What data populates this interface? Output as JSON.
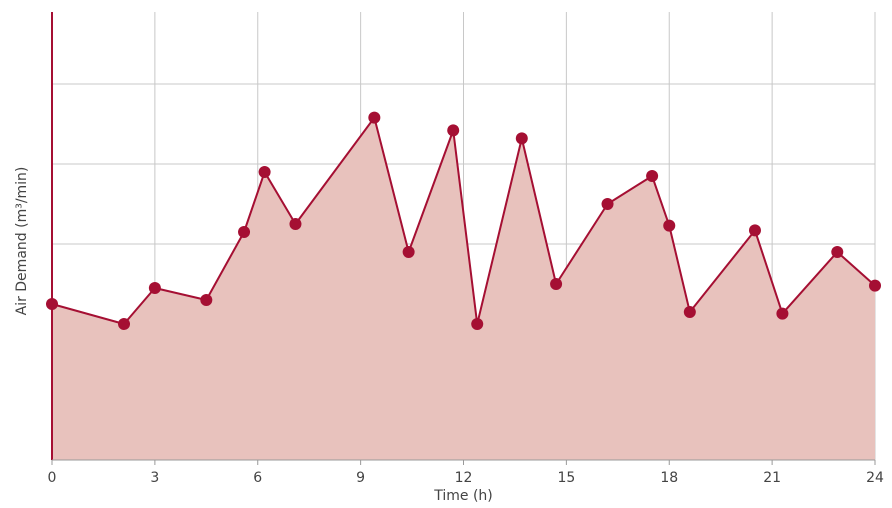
{
  "chart_data": {
    "type": "area",
    "title": "",
    "xlabel": "Time (h)",
    "ylabel": "Air Demand (m³/min)",
    "xlim": [
      0,
      24
    ],
    "ylim": [
      0,
      5.6
    ],
    "x_ticks": [
      0,
      3,
      6,
      9,
      12,
      15,
      18,
      21,
      24
    ],
    "x_tick_labels": [
      "0",
      "3",
      "6",
      "9",
      "12",
      "15",
      "18",
      "21",
      "24"
    ],
    "y_gridlines": [
      0.7,
      1.7,
      2.7,
      3.7,
      4.7
    ],
    "y_tick_labels_shown": false,
    "grid": true,
    "legend": "none",
    "series": [
      {
        "x": [
          0.0,
          2.1,
          3.0,
          4.5,
          5.6,
          6.2,
          7.1,
          9.4,
          10.4,
          11.7,
          12.4,
          13.7,
          14.7,
          16.2,
          17.5,
          18.0,
          18.6,
          20.5,
          21.3,
          22.9,
          24.0
        ],
        "y": [
          1.95,
          1.7,
          2.15,
          2.0,
          2.85,
          3.6,
          2.95,
          4.28,
          2.6,
          4.12,
          1.7,
          4.02,
          2.2,
          3.2,
          3.55,
          2.93,
          1.85,
          2.87,
          1.83,
          2.6,
          2.18
        ]
      }
    ],
    "colors": {
      "line": "#a50f33",
      "marker": "#a50f33",
      "fill": "#e8c2bd",
      "axis": "#a50f33",
      "grid": "#c8c8c8"
    }
  }
}
